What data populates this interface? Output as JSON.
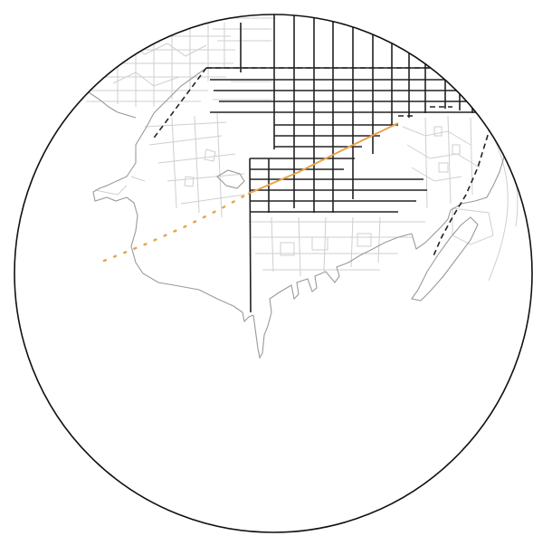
{
  "map": {
    "shape": "circular-viewport",
    "colors": {
      "background": "#ffffff",
      "frame": "#111111",
      "street_grid": "#222222",
      "base_streets": "#cfcfcf",
      "coastline": "#9a9a9a",
      "boundary_dashed": "#222222",
      "route_highlight": "#e8a24a"
    },
    "layers": [
      "base-streets",
      "coastline",
      "street-grid",
      "dashed-boundary",
      "highlighted-route"
    ]
  }
}
